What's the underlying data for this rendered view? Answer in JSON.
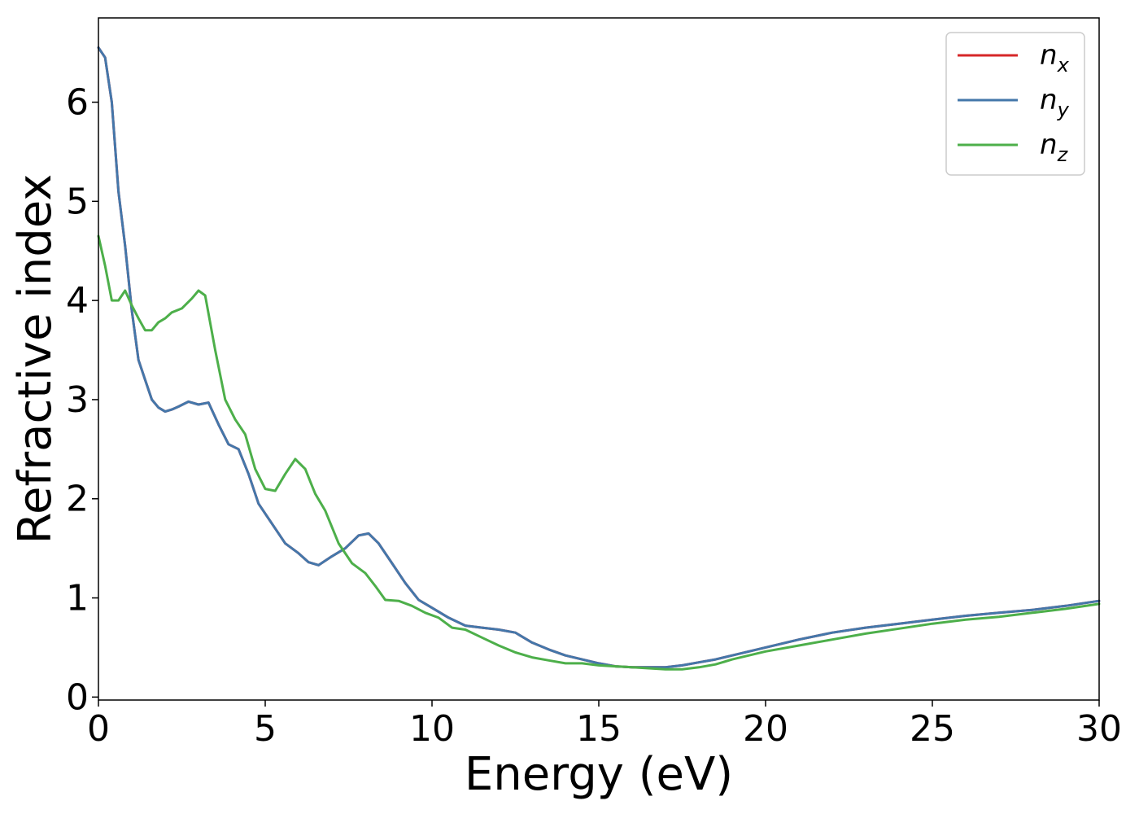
{
  "chart_data": {
    "type": "line",
    "title": "",
    "xlabel": "Energy (eV)",
    "ylabel": "Refractive index",
    "xlim": [
      0,
      30
    ],
    "ylim": [
      -0.03,
      6.85
    ],
    "xticks": [
      0,
      5,
      10,
      15,
      20,
      25,
      30
    ],
    "yticks": [
      0,
      1,
      2,
      3,
      4,
      5,
      6
    ],
    "grid": false,
    "legend_position": "top-right",
    "series": [
      {
        "name": "n_x",
        "legend_base": "n",
        "legend_sub": "x",
        "color": "#d62728",
        "x": [
          0,
          0.2,
          0.4,
          0.6,
          0.8,
          1.0,
          1.2,
          1.4,
          1.6,
          1.8,
          2.0,
          2.2,
          2.4,
          2.7,
          3.0,
          3.3,
          3.6,
          3.9,
          4.2,
          4.5,
          4.8,
          5.2,
          5.6,
          6.0,
          6.3,
          6.6,
          7.0,
          7.4,
          7.8,
          8.1,
          8.4,
          8.8,
          9.2,
          9.6,
          10.0,
          10.5,
          11.0,
          11.5,
          12.0,
          12.5,
          13.0,
          13.5,
          14.0,
          14.5,
          15.0,
          15.5,
          16.0,
          16.5,
          17.0,
          17.5,
          18.0,
          18.5,
          19.0,
          19.5,
          20.0,
          21.0,
          22.0,
          23.0,
          24.0,
          25.0,
          26.0,
          27.0,
          28.0,
          29.0,
          30.0
        ],
        "y": [
          6.55,
          6.45,
          6.0,
          5.1,
          4.55,
          3.9,
          3.4,
          3.2,
          3.0,
          2.92,
          2.88,
          2.9,
          2.93,
          2.98,
          2.95,
          2.97,
          2.75,
          2.55,
          2.5,
          2.25,
          1.95,
          1.75,
          1.55,
          1.45,
          1.36,
          1.33,
          1.42,
          1.5,
          1.63,
          1.65,
          1.55,
          1.35,
          1.15,
          0.98,
          0.9,
          0.8,
          0.72,
          0.7,
          0.68,
          0.65,
          0.55,
          0.48,
          0.42,
          0.38,
          0.34,
          0.31,
          0.3,
          0.3,
          0.3,
          0.32,
          0.35,
          0.38,
          0.42,
          0.46,
          0.5,
          0.58,
          0.65,
          0.7,
          0.74,
          0.78,
          0.82,
          0.85,
          0.88,
          0.92,
          0.97
        ]
      },
      {
        "name": "n_y",
        "legend_base": "n",
        "legend_sub": "y",
        "color": "#4477aa",
        "x": [
          0,
          0.2,
          0.4,
          0.6,
          0.8,
          1.0,
          1.2,
          1.4,
          1.6,
          1.8,
          2.0,
          2.2,
          2.4,
          2.7,
          3.0,
          3.3,
          3.6,
          3.9,
          4.2,
          4.5,
          4.8,
          5.2,
          5.6,
          6.0,
          6.3,
          6.6,
          7.0,
          7.4,
          7.8,
          8.1,
          8.4,
          8.8,
          9.2,
          9.6,
          10.0,
          10.5,
          11.0,
          11.5,
          12.0,
          12.5,
          13.0,
          13.5,
          14.0,
          14.5,
          15.0,
          15.5,
          16.0,
          16.5,
          17.0,
          17.5,
          18.0,
          18.5,
          19.0,
          19.5,
          20.0,
          21.0,
          22.0,
          23.0,
          24.0,
          25.0,
          26.0,
          27.0,
          28.0,
          29.0,
          30.0
        ],
        "y": [
          6.55,
          6.45,
          6.0,
          5.1,
          4.55,
          3.9,
          3.4,
          3.2,
          3.0,
          2.92,
          2.88,
          2.9,
          2.93,
          2.98,
          2.95,
          2.97,
          2.75,
          2.55,
          2.5,
          2.25,
          1.95,
          1.75,
          1.55,
          1.45,
          1.36,
          1.33,
          1.42,
          1.5,
          1.63,
          1.65,
          1.55,
          1.35,
          1.15,
          0.98,
          0.9,
          0.8,
          0.72,
          0.7,
          0.68,
          0.65,
          0.55,
          0.48,
          0.42,
          0.38,
          0.34,
          0.31,
          0.3,
          0.3,
          0.3,
          0.32,
          0.35,
          0.38,
          0.42,
          0.46,
          0.5,
          0.58,
          0.65,
          0.7,
          0.74,
          0.78,
          0.82,
          0.85,
          0.88,
          0.92,
          0.97
        ]
      },
      {
        "name": "n_z",
        "legend_base": "n",
        "legend_sub": "z",
        "color": "#4daf4a",
        "x": [
          0,
          0.2,
          0.4,
          0.6,
          0.8,
          1.0,
          1.2,
          1.4,
          1.6,
          1.8,
          2.0,
          2.2,
          2.5,
          2.8,
          3.0,
          3.2,
          3.5,
          3.8,
          4.1,
          4.4,
          4.7,
          5.0,
          5.3,
          5.6,
          5.9,
          6.2,
          6.5,
          6.8,
          7.2,
          7.6,
          8.0,
          8.3,
          8.6,
          9.0,
          9.4,
          9.8,
          10.2,
          10.6,
          11.0,
          11.5,
          12.0,
          12.5,
          13.0,
          13.5,
          14.0,
          14.5,
          15.0,
          15.5,
          16.0,
          16.5,
          17.0,
          17.5,
          18.0,
          18.5,
          19.0,
          19.5,
          20.0,
          21.0,
          22.0,
          23.0,
          24.0,
          25.0,
          26.0,
          27.0,
          28.0,
          29.0,
          30.0
        ],
        "y": [
          4.65,
          4.35,
          4.0,
          4.0,
          4.1,
          3.95,
          3.82,
          3.7,
          3.7,
          3.78,
          3.82,
          3.88,
          3.92,
          4.02,
          4.1,
          4.05,
          3.5,
          3.0,
          2.8,
          2.65,
          2.3,
          2.1,
          2.08,
          2.25,
          2.4,
          2.3,
          2.05,
          1.88,
          1.55,
          1.35,
          1.25,
          1.12,
          0.98,
          0.97,
          0.92,
          0.85,
          0.8,
          0.7,
          0.68,
          0.6,
          0.52,
          0.45,
          0.4,
          0.37,
          0.34,
          0.34,
          0.32,
          0.31,
          0.3,
          0.29,
          0.28,
          0.28,
          0.3,
          0.33,
          0.38,
          0.42,
          0.46,
          0.52,
          0.58,
          0.64,
          0.69,
          0.74,
          0.78,
          0.81,
          0.85,
          0.89,
          0.94
        ]
      }
    ]
  }
}
